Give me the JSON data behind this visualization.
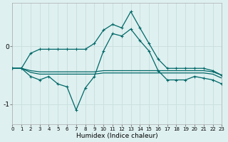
{
  "x": [
    0,
    1,
    2,
    3,
    4,
    5,
    6,
    7,
    8,
    9,
    10,
    11,
    12,
    13,
    14,
    15,
    16,
    17,
    18,
    19,
    20,
    21,
    22,
    23
  ],
  "line_high": [
    -0.38,
    -0.38,
    -0.12,
    -0.05,
    -0.05,
    -0.05,
    -0.05,
    -0.05,
    -0.05,
    0.05,
    0.28,
    0.38,
    0.32,
    0.6,
    0.32,
    0.05,
    -0.22,
    -0.38,
    -0.38,
    -0.38,
    -0.38,
    -0.38,
    -0.42,
    -0.5
  ],
  "line_low": [
    -0.38,
    -0.38,
    -0.52,
    -0.58,
    -0.52,
    -0.65,
    -0.7,
    -1.1,
    -0.72,
    -0.52,
    -0.08,
    0.22,
    0.18,
    0.3,
    0.1,
    -0.08,
    -0.42,
    -0.58,
    -0.58,
    -0.58,
    -0.52,
    -0.55,
    -0.58,
    -0.65
  ],
  "line_flat1": [
    -0.38,
    -0.38,
    -0.42,
    -0.44,
    -0.44,
    -0.44,
    -0.44,
    -0.44,
    -0.44,
    -0.44,
    -0.42,
    -0.42,
    -0.42,
    -0.42,
    -0.42,
    -0.42,
    -0.42,
    -0.42,
    -0.42,
    -0.42,
    -0.42,
    -0.42,
    -0.44,
    -0.5
  ],
  "line_flat2": [
    -0.38,
    -0.38,
    -0.45,
    -0.48,
    -0.48,
    -0.48,
    -0.48,
    -0.48,
    -0.48,
    -0.48,
    -0.46,
    -0.46,
    -0.46,
    -0.46,
    -0.46,
    -0.46,
    -0.46,
    -0.46,
    -0.46,
    -0.46,
    -0.46,
    -0.46,
    -0.48,
    -0.55
  ],
  "bg_color": "#dff0f0",
  "line_color": "#006868",
  "grid_major_color": "#c8dede",
  "grid_minor_color": "#e0ecec",
  "xlabel": "Humidex (Indice chaleur)",
  "yticks": [
    -1,
    0
  ],
  "ylim": [
    -1.35,
    0.75
  ],
  "xlim": [
    0,
    23
  ],
  "xticks": [
    0,
    1,
    2,
    3,
    4,
    5,
    6,
    7,
    8,
    9,
    10,
    11,
    12,
    13,
    14,
    15,
    16,
    17,
    18,
    19,
    20,
    21,
    22,
    23
  ]
}
